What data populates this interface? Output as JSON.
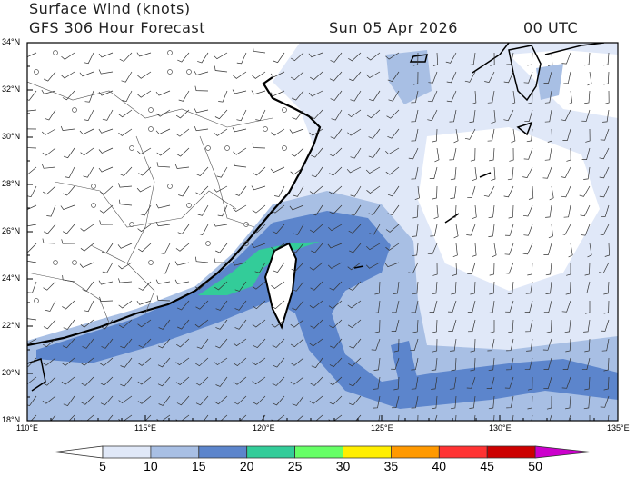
{
  "header": {
    "title": "Surface Wind (knots)",
    "forecast": "GFS 306 Hour Forecast",
    "date": "Sun 05 Apr 2026",
    "time": "00 UTC"
  },
  "axes": {
    "lat_labels": [
      "34°N",
      "32°N",
      "30°N",
      "28°N",
      "26°N",
      "24°N",
      "22°N",
      "20°N",
      "18°N"
    ],
    "lon_labels": [
      "110°E",
      "115°E",
      "120°E",
      "125°E",
      "130°E",
      "135°E"
    ]
  },
  "colorbar": {
    "labels": [
      "5",
      "10",
      "15",
      "20",
      "25",
      "30",
      "35",
      "40",
      "45",
      "50"
    ],
    "colors": [
      "#ffffff",
      "#e0e8f8",
      "#a8bfe4",
      "#5c85cc",
      "#33cc99",
      "#66ff66",
      "#ffee00",
      "#ff9900",
      "#ff3333",
      "#cc0000",
      "#cc00cc"
    ]
  },
  "map": {
    "land_color": "#ffffff",
    "coast_color": "#000000",
    "domain": {
      "lon": [
        110,
        135
      ],
      "lat": [
        18,
        34
      ]
    }
  }
}
